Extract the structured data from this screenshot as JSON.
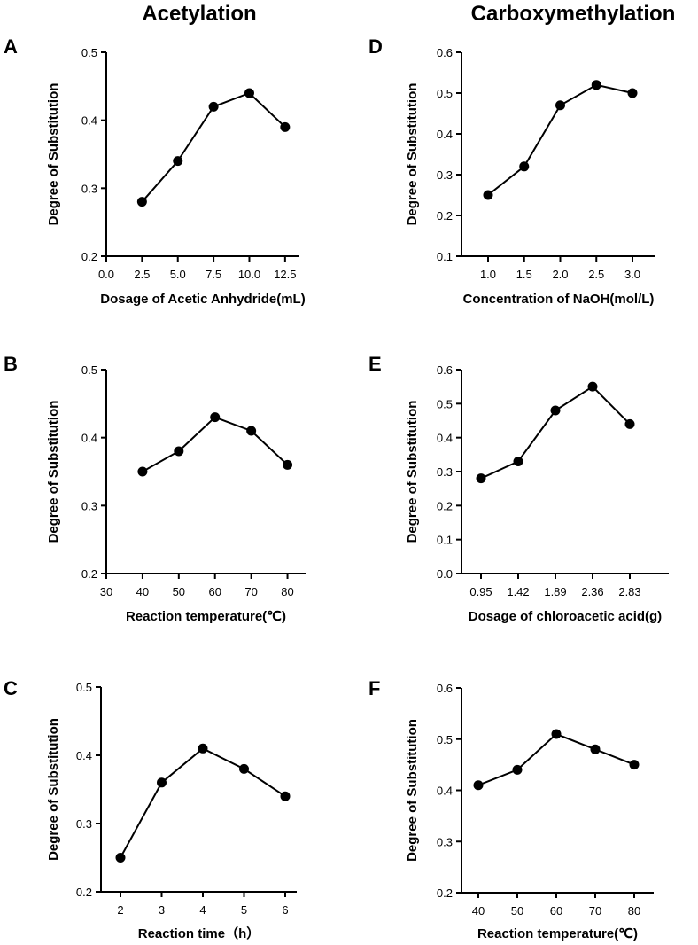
{
  "column_titles": [
    "Acetylation",
    "Carboxymethylation"
  ],
  "colors": {
    "line": "#000000",
    "background": "#ffffff"
  },
  "chart_data": [
    {
      "panel": "A",
      "type": "line",
      "title": "",
      "xlabel": "Dosage of Acetic Anhydride(mL)",
      "ylabel": "Degree of Substitution",
      "x_axis": "numeric",
      "xlim": [
        0,
        13.5
      ],
      "xticks": [
        0.0,
        2.5,
        5.0,
        7.5,
        10.0,
        12.5
      ],
      "xtick_labels": [
        "0.0",
        "2.5",
        "5.0",
        "7.5",
        "10.0",
        "12.5"
      ],
      "ylim": [
        0.2,
        0.5
      ],
      "yticks": [
        0.2,
        0.3,
        0.4,
        0.5
      ],
      "ytick_labels": [
        "0.2",
        "0.3",
        "0.4",
        "0.5"
      ],
      "x": [
        2.5,
        5.0,
        7.5,
        10.0,
        12.5
      ],
      "y": [
        0.28,
        0.34,
        0.42,
        0.44,
        0.39
      ]
    },
    {
      "panel": "B",
      "type": "line",
      "title": "",
      "xlabel": "Reaction temperature(℃)",
      "ylabel": "Degree of Substitution",
      "x_axis": "numeric",
      "xlim": [
        30,
        85
      ],
      "xticks": [
        30,
        40,
        50,
        60,
        70,
        80
      ],
      "xtick_labels": [
        "30",
        "40",
        "50",
        "60",
        "70",
        "80"
      ],
      "ylim": [
        0.2,
        0.5
      ],
      "yticks": [
        0.2,
        0.3,
        0.4,
        0.5
      ],
      "ytick_labels": [
        "0.2",
        "0.3",
        "0.4",
        "0.5"
      ],
      "x": [
        40,
        50,
        60,
        70,
        80
      ],
      "y": [
        0.35,
        0.38,
        0.43,
        0.41,
        0.36
      ]
    },
    {
      "panel": "C",
      "type": "line",
      "title": "",
      "xlabel": "Reaction time（h）",
      "ylabel": "Degree of Substitution",
      "x_axis": "categorical",
      "categories": [
        "2",
        "3",
        "4",
        "5",
        "6"
      ],
      "ylim": [
        0.2,
        0.5
      ],
      "yticks": [
        0.2,
        0.3,
        0.4,
        0.5
      ],
      "ytick_labels": [
        "0.2",
        "0.3",
        "0.4",
        "0.5"
      ],
      "y": [
        0.25,
        0.36,
        0.41,
        0.38,
        0.34
      ]
    },
    {
      "panel": "D",
      "type": "line",
      "title": "",
      "xlabel": "Concentration of NaOH(mol/L)",
      "ylabel": "Degree of Substitution",
      "x_axis": "categorical",
      "categories": [
        "1.0",
        "1.5",
        "2.0",
        "2.5",
        "3.0"
      ],
      "ylim": [
        0.1,
        0.6
      ],
      "yticks": [
        0.1,
        0.2,
        0.3,
        0.4,
        0.5,
        0.6
      ],
      "ytick_labels": [
        "0.1",
        "0.2",
        "0.3",
        "0.4",
        "0.5",
        "0.6"
      ],
      "y": [
        0.25,
        0.32,
        0.47,
        0.52,
        0.5
      ]
    },
    {
      "panel": "E",
      "type": "line",
      "title": "",
      "xlabel": "Dosage of chloroacetic acid(g)",
      "ylabel": "Degree of Substitution",
      "x_axis": "categorical",
      "categories": [
        "0.95",
        "1.42",
        "1.89",
        "2.36",
        "2.83"
      ],
      "ylim": [
        0.0,
        0.6
      ],
      "yticks": [
        0.0,
        0.1,
        0.2,
        0.3,
        0.4,
        0.5,
        0.6
      ],
      "ytick_labels": [
        "0.0",
        "0.1",
        "0.2",
        "0.3",
        "0.4",
        "0.5",
        "0.6"
      ],
      "y": [
        0.28,
        0.33,
        0.48,
        0.55,
        0.44
      ]
    },
    {
      "panel": "F",
      "type": "line",
      "title": "",
      "xlabel": "Reaction temperature(℃)",
      "ylabel": "Degree of Substitution",
      "x_axis": "categorical",
      "categories": [
        "40",
        "50",
        "60",
        "70",
        "80"
      ],
      "ylim": [
        0.2,
        0.6
      ],
      "yticks": [
        0.2,
        0.3,
        0.4,
        0.5,
        0.6
      ],
      "ytick_labels": [
        "0.2",
        "0.3",
        "0.4",
        "0.5",
        "0.6"
      ],
      "y": [
        0.41,
        0.44,
        0.51,
        0.48,
        0.45
      ]
    }
  ]
}
